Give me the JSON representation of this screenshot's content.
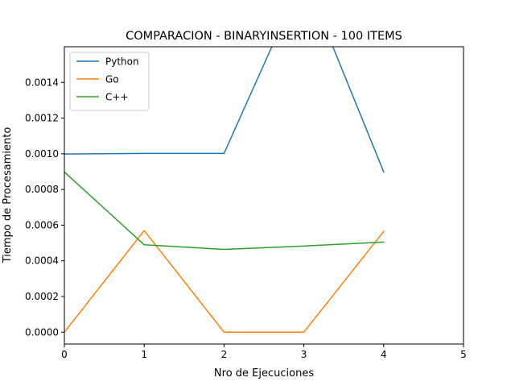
{
  "chart_data": {
    "type": "line",
    "title": "COMPARACION - BINARYINSERTION - 100 ITEMS",
    "xlabel": "Nro de Ejecuciones",
    "ylabel": "Tiempo de Procesamiento",
    "xlim": [
      0,
      5
    ],
    "ylim": [
      -6.65e-05,
      0.0016
    ],
    "x_ticks": [
      0,
      1,
      2,
      3,
      4,
      5
    ],
    "x_tick_labels": [
      "0",
      "1",
      "2",
      "3",
      "4",
      "5"
    ],
    "y_ticks": [
      0,
      0.0002,
      0.0004,
      0.0006,
      0.0008,
      0.001,
      0.0012,
      0.0014
    ],
    "y_tick_labels": [
      "0.0000",
      "0.0002",
      "0.0004",
      "0.0006",
      "0.0008",
      "0.0010",
      "0.0012",
      "0.0014"
    ],
    "grid": false,
    "legend_position": "top-left",
    "x": [
      0,
      1,
      2,
      3,
      4
    ],
    "series": [
      {
        "name": "Python",
        "color": "#1f77b4",
        "values": [
          0.000999,
          0.001002,
          0.001002,
          0.002,
          0.000899
        ]
      },
      {
        "name": "Go",
        "color": "#ff7f0e",
        "values": [
          0.0,
          0.00057,
          0.0,
          0.0,
          0.000565
        ]
      },
      {
        "name": "C++",
        "color": "#2ca02c",
        "values": [
          0.000898,
          0.00049,
          0.000464,
          0.000483,
          0.000505
        ]
      }
    ]
  }
}
